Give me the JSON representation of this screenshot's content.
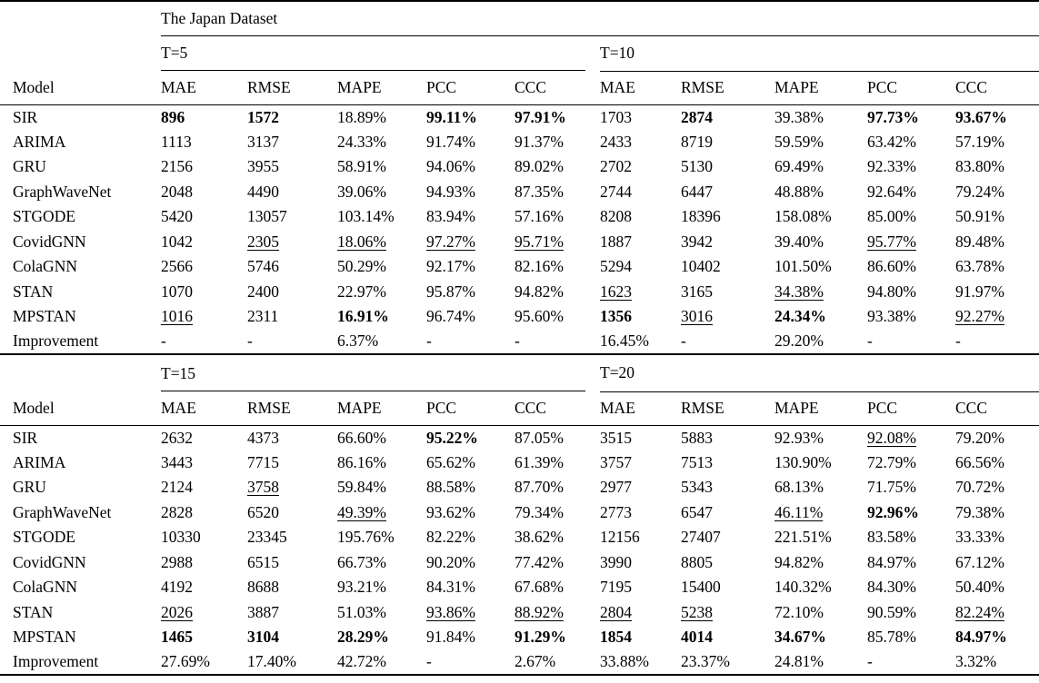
{
  "dataset_title": "The Japan Dataset",
  "column_headers": [
    "Model",
    "MAE",
    "RMSE",
    "MAPE",
    "PCC",
    "CCC"
  ],
  "emphasis_legend": {
    "b": "best (bold)",
    "u": "second-best (underline)"
  },
  "sections": [
    {
      "groups": [
        "T=5",
        "T=10"
      ],
      "rows": [
        {
          "model": "SIR",
          "cells": [
            [
              {
                "t": "896",
                "f": "b"
              },
              {
                "t": "1572",
                "f": "b"
              },
              {
                "t": "18.89%"
              },
              {
                "t": "99.11%",
                "f": "b"
              },
              {
                "t": "97.91%",
                "f": "b"
              }
            ],
            [
              {
                "t": "1703"
              },
              {
                "t": "2874",
                "f": "b"
              },
              {
                "t": "39.38%"
              },
              {
                "t": "97.73%",
                "f": "b"
              },
              {
                "t": "93.67%",
                "f": "b"
              }
            ]
          ]
        },
        {
          "model": "ARIMA",
          "cells": [
            [
              {
                "t": "1113"
              },
              {
                "t": "3137"
              },
              {
                "t": "24.33%"
              },
              {
                "t": "91.74%"
              },
              {
                "t": "91.37%"
              }
            ],
            [
              {
                "t": "2433"
              },
              {
                "t": "8719"
              },
              {
                "t": "59.59%"
              },
              {
                "t": "63.42%"
              },
              {
                "t": "57.19%"
              }
            ]
          ]
        },
        {
          "model": "GRU",
          "cells": [
            [
              {
                "t": "2156"
              },
              {
                "t": "3955"
              },
              {
                "t": "58.91%"
              },
              {
                "t": "94.06%"
              },
              {
                "t": "89.02%"
              }
            ],
            [
              {
                "t": "2702"
              },
              {
                "t": "5130"
              },
              {
                "t": "69.49%"
              },
              {
                "t": "92.33%"
              },
              {
                "t": "83.80%"
              }
            ]
          ]
        },
        {
          "model": "GraphWaveNet",
          "cells": [
            [
              {
                "t": "2048"
              },
              {
                "t": "4490"
              },
              {
                "t": "39.06%"
              },
              {
                "t": "94.93%"
              },
              {
                "t": "87.35%"
              }
            ],
            [
              {
                "t": "2744"
              },
              {
                "t": "6447"
              },
              {
                "t": "48.88%"
              },
              {
                "t": "92.64%"
              },
              {
                "t": "79.24%"
              }
            ]
          ]
        },
        {
          "model": "STGODE",
          "cells": [
            [
              {
                "t": "5420"
              },
              {
                "t": "13057"
              },
              {
                "t": "103.14%"
              },
              {
                "t": "83.94%"
              },
              {
                "t": "57.16%"
              }
            ],
            [
              {
                "t": "8208"
              },
              {
                "t": "18396"
              },
              {
                "t": "158.08%"
              },
              {
                "t": "85.00%"
              },
              {
                "t": "50.91%"
              }
            ]
          ]
        },
        {
          "model": "CovidGNN",
          "cells": [
            [
              {
                "t": "1042"
              },
              {
                "t": "2305",
                "f": "u"
              },
              {
                "t": "18.06%",
                "f": "u"
              },
              {
                "t": "97.27%",
                "f": "u"
              },
              {
                "t": "95.71%",
                "f": "u"
              }
            ],
            [
              {
                "t": "1887"
              },
              {
                "t": "3942"
              },
              {
                "t": "39.40%"
              },
              {
                "t": "95.77%",
                "f": "u"
              },
              {
                "t": "89.48%"
              }
            ]
          ]
        },
        {
          "model": "ColaGNN",
          "cells": [
            [
              {
                "t": "2566"
              },
              {
                "t": "5746"
              },
              {
                "t": "50.29%"
              },
              {
                "t": "92.17%"
              },
              {
                "t": "82.16%"
              }
            ],
            [
              {
                "t": "5294"
              },
              {
                "t": "10402"
              },
              {
                "t": "101.50%"
              },
              {
                "t": "86.60%"
              },
              {
                "t": "63.78%"
              }
            ]
          ]
        },
        {
          "model": "STAN",
          "cells": [
            [
              {
                "t": "1070"
              },
              {
                "t": "2400"
              },
              {
                "t": "22.97%"
              },
              {
                "t": "95.87%"
              },
              {
                "t": "94.82%"
              }
            ],
            [
              {
                "t": "1623",
                "f": "u"
              },
              {
                "t": "3165"
              },
              {
                "t": "34.38%",
                "f": "u"
              },
              {
                "t": "94.80%"
              },
              {
                "t": "91.97%"
              }
            ]
          ]
        },
        {
          "model": "MPSTAN",
          "cells": [
            [
              {
                "t": "1016",
                "f": "u"
              },
              {
                "t": "2311"
              },
              {
                "t": "16.91%",
                "f": "b"
              },
              {
                "t": "96.74%"
              },
              {
                "t": "95.60%"
              }
            ],
            [
              {
                "t": "1356",
                "f": "b"
              },
              {
                "t": "3016",
                "f": "u"
              },
              {
                "t": "24.34%",
                "f": "b"
              },
              {
                "t": "93.38%"
              },
              {
                "t": "92.27%",
                "f": "u"
              }
            ]
          ]
        },
        {
          "model": "Improvement",
          "cells": [
            [
              {
                "t": "-"
              },
              {
                "t": "-"
              },
              {
                "t": "6.37%"
              },
              {
                "t": "-"
              },
              {
                "t": "-"
              }
            ],
            [
              {
                "t": "16.45%"
              },
              {
                "t": "-"
              },
              {
                "t": "29.20%"
              },
              {
                "t": "-"
              },
              {
                "t": "-"
              }
            ]
          ]
        }
      ]
    },
    {
      "groups": [
        "T=15",
        "T=20"
      ],
      "rows": [
        {
          "model": "SIR",
          "cells": [
            [
              {
                "t": "2632"
              },
              {
                "t": "4373"
              },
              {
                "t": "66.60%"
              },
              {
                "t": "95.22%",
                "f": "b"
              },
              {
                "t": "87.05%"
              }
            ],
            [
              {
                "t": "3515"
              },
              {
                "t": "5883"
              },
              {
                "t": "92.93%"
              },
              {
                "t": "92.08%",
                "f": "u"
              },
              {
                "t": "79.20%"
              }
            ]
          ]
        },
        {
          "model": "ARIMA",
          "cells": [
            [
              {
                "t": "3443"
              },
              {
                "t": "7715"
              },
              {
                "t": "86.16%"
              },
              {
                "t": "65.62%"
              },
              {
                "t": "61.39%"
              }
            ],
            [
              {
                "t": "3757"
              },
              {
                "t": "7513"
              },
              {
                "t": "130.90%"
              },
              {
                "t": "72.79%"
              },
              {
                "t": "66.56%"
              }
            ]
          ]
        },
        {
          "model": "GRU",
          "cells": [
            [
              {
                "t": "2124"
              },
              {
                "t": "3758",
                "f": "u"
              },
              {
                "t": "59.84%"
              },
              {
                "t": "88.58%"
              },
              {
                "t": "87.70%"
              }
            ],
            [
              {
                "t": "2977"
              },
              {
                "t": "5343"
              },
              {
                "t": "68.13%"
              },
              {
                "t": "71.75%"
              },
              {
                "t": "70.72%"
              }
            ]
          ]
        },
        {
          "model": "GraphWaveNet",
          "cells": [
            [
              {
                "t": "2828"
              },
              {
                "t": "6520"
              },
              {
                "t": "49.39%",
                "f": "u"
              },
              {
                "t": "93.62%"
              },
              {
                "t": "79.34%"
              }
            ],
            [
              {
                "t": "2773"
              },
              {
                "t": "6547"
              },
              {
                "t": "46.11%",
                "f": "u"
              },
              {
                "t": "92.96%",
                "f": "b"
              },
              {
                "t": "79.38%"
              }
            ]
          ]
        },
        {
          "model": "STGODE",
          "cells": [
            [
              {
                "t": "10330"
              },
              {
                "t": "23345"
              },
              {
                "t": "195.76%"
              },
              {
                "t": "82.22%"
              },
              {
                "t": "38.62%"
              }
            ],
            [
              {
                "t": "12156"
              },
              {
                "t": "27407"
              },
              {
                "t": "221.51%"
              },
              {
                "t": "83.58%"
              },
              {
                "t": "33.33%"
              }
            ]
          ]
        },
        {
          "model": "CovidGNN",
          "cells": [
            [
              {
                "t": "2988"
              },
              {
                "t": "6515"
              },
              {
                "t": "66.73%"
              },
              {
                "t": "90.20%"
              },
              {
                "t": "77.42%"
              }
            ],
            [
              {
                "t": "3990"
              },
              {
                "t": "8805"
              },
              {
                "t": "94.82%"
              },
              {
                "t": "84.97%"
              },
              {
                "t": "67.12%"
              }
            ]
          ]
        },
        {
          "model": "ColaGNN",
          "cells": [
            [
              {
                "t": "4192"
              },
              {
                "t": "8688"
              },
              {
                "t": "93.21%"
              },
              {
                "t": "84.31%"
              },
              {
                "t": "67.68%"
              }
            ],
            [
              {
                "t": "7195"
              },
              {
                "t": "15400"
              },
              {
                "t": "140.32%"
              },
              {
                "t": "84.30%"
              },
              {
                "t": "50.40%"
              }
            ]
          ]
        },
        {
          "model": "STAN",
          "cells": [
            [
              {
                "t": "2026",
                "f": "u"
              },
              {
                "t": "3887"
              },
              {
                "t": "51.03%"
              },
              {
                "t": "93.86%",
                "f": "u"
              },
              {
                "t": "88.92%",
                "f": "u"
              }
            ],
            [
              {
                "t": "2804",
                "f": "u"
              },
              {
                "t": "5238",
                "f": "u"
              },
              {
                "t": "72.10%"
              },
              {
                "t": "90.59%"
              },
              {
                "t": "82.24%",
                "f": "u"
              }
            ]
          ]
        },
        {
          "model": "MPSTAN",
          "cells": [
            [
              {
                "t": "1465",
                "f": "b"
              },
              {
                "t": "3104",
                "f": "b"
              },
              {
                "t": "28.29%",
                "f": "b"
              },
              {
                "t": "91.84%"
              },
              {
                "t": "91.29%",
                "f": "b"
              }
            ],
            [
              {
                "t": "1854",
                "f": "b"
              },
              {
                "t": "4014",
                "f": "b"
              },
              {
                "t": "34.67%",
                "f": "b"
              },
              {
                "t": "85.78%"
              },
              {
                "t": "84.97%",
                "f": "b"
              }
            ]
          ]
        },
        {
          "model": "Improvement",
          "cells": [
            [
              {
                "t": "27.69%"
              },
              {
                "t": "17.40%"
              },
              {
                "t": "42.72%"
              },
              {
                "t": "-"
              },
              {
                "t": "2.67%"
              }
            ],
            [
              {
                "t": "33.88%"
              },
              {
                "t": "23.37%"
              },
              {
                "t": "24.81%"
              },
              {
                "t": "-"
              },
              {
                "t": "3.32%"
              }
            ]
          ]
        }
      ]
    }
  ]
}
